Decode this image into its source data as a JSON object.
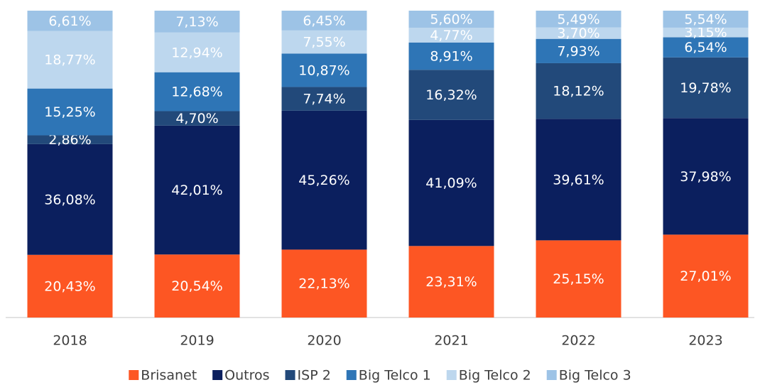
{
  "chart_data": {
    "type": "stacked_bar",
    "categories": [
      "2018",
      "2019",
      "2020",
      "2021",
      "2022",
      "2023"
    ],
    "series": [
      {
        "name": "Brisanet",
        "color": "#fd5623",
        "values": [
          20.43,
          20.54,
          22.13,
          23.31,
          25.15,
          27.01
        ],
        "value_labels": [
          "20,43%",
          "20,54%",
          "22,13%",
          "23,31%",
          "25,15%",
          "27,01%"
        ]
      },
      {
        "name": "Outros",
        "color": "#0b1f5e",
        "values": [
          36.08,
          42.01,
          45.26,
          41.09,
          39.61,
          37.98
        ],
        "value_labels": [
          "36,08%",
          "42,01%",
          "45,26%",
          "41,09%",
          "39,61%",
          "37,98%"
        ]
      },
      {
        "name": "ISP 2",
        "color": "#22497a",
        "values": [
          2.86,
          4.7,
          7.74,
          16.32,
          18.12,
          19.78
        ],
        "value_labels": [
          "2,86%",
          "4,70%",
          "7,74%",
          "16,32%",
          "18,12%",
          "19,78%"
        ]
      },
      {
        "name": "Big Telco 1",
        "color": "#2e75b6",
        "values": [
          15.25,
          12.68,
          10.87,
          8.91,
          7.93,
          6.54
        ],
        "value_labels": [
          "15,25%",
          "12,68%",
          "10,87%",
          "8,91%",
          "7,93%",
          "6,54%"
        ]
      },
      {
        "name": "Big Telco 2",
        "color": "#bdd7ee",
        "values": [
          18.77,
          12.94,
          7.55,
          4.77,
          3.7,
          3.15
        ],
        "value_labels": [
          "18,77%",
          "12,94%",
          "7,55%",
          "4,77%",
          "3,70%",
          "3,15%"
        ]
      },
      {
        "name": "Big Telco 3",
        "color": "#9dc3e6",
        "values": [
          6.61,
          7.13,
          6.45,
          5.6,
          5.49,
          5.54
        ],
        "value_labels": [
          "6,61%",
          "7,13%",
          "6,45%",
          "5,60%",
          "5,49%",
          "5,54%"
        ]
      }
    ]
  }
}
